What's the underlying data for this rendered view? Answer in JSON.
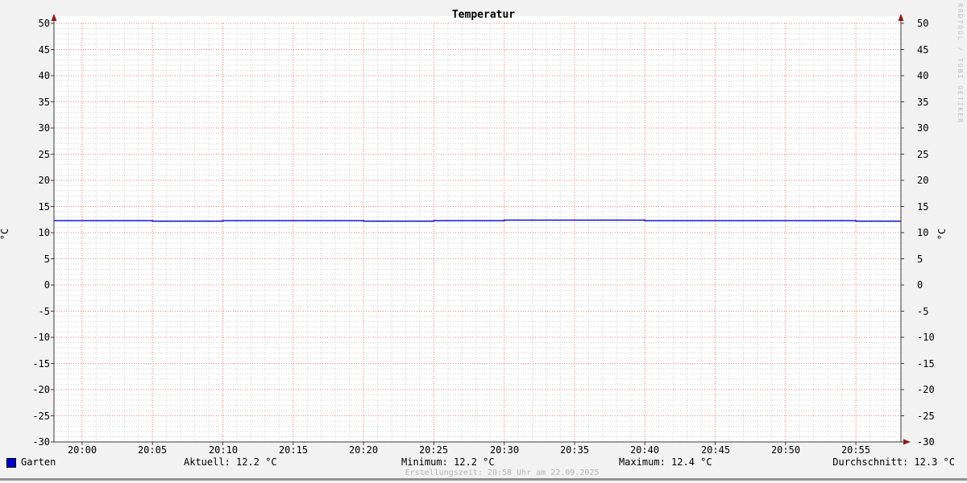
{
  "title": "Temperatur",
  "axis_unit_left": "°C",
  "axis_unit_right": "°C",
  "watermark": "RRDTOOL / TOBI OETIKER",
  "footer": {
    "creation_text": "Erstellungszeit: 20:58 Uhr am 22.09.2025"
  },
  "legend": {
    "series_label": "Garten",
    "series_color": "#0000cc",
    "aktuell": "Aktuell: 12.2 °C",
    "minimum": "Minimum: 12.2 °C",
    "maximum": "Maximum: 12.4 °C",
    "durchschnitt": "Durchschnitt: 12.3 °C"
  },
  "chart_data": {
    "type": "line",
    "title": "Temperatur",
    "ylabel": "°C",
    "ylim": [
      -30,
      50
    ],
    "y_major_step": 5,
    "y_minor_step": 1,
    "y_tick_labels": [
      "50",
      "45",
      "40",
      "35",
      "30",
      "25",
      "20",
      "15",
      "10",
      "5",
      "0",
      "-5",
      "-10",
      "-15",
      "-20",
      "-25",
      "-30"
    ],
    "x_range_minutes": 60.2,
    "x_minor_step_minutes": 1,
    "x_major_ticks": [
      {
        "min": 2,
        "label": "20:00"
      },
      {
        "min": 7,
        "label": "20:05"
      },
      {
        "min": 12,
        "label": "20:10"
      },
      {
        "min": 17,
        "label": "20:15"
      },
      {
        "min": 22,
        "label": "20:20"
      },
      {
        "min": 27,
        "label": "20:25"
      },
      {
        "min": 32,
        "label": "20:30"
      },
      {
        "min": 37,
        "label": "20:35"
      },
      {
        "min": 42,
        "label": "20:40"
      },
      {
        "min": 47,
        "label": "20:45"
      },
      {
        "min": 52,
        "label": "20:50"
      },
      {
        "min": 57,
        "label": "20:55"
      }
    ],
    "series": [
      {
        "name": "Garten",
        "color": "#0000cc",
        "points": [
          [
            0,
            12.3
          ],
          [
            2,
            12.3
          ],
          [
            7,
            12.2
          ],
          [
            12,
            12.3
          ],
          [
            17,
            12.3
          ],
          [
            22,
            12.2
          ],
          [
            27,
            12.3
          ],
          [
            32,
            12.4
          ],
          [
            37,
            12.4
          ],
          [
            42,
            12.3
          ],
          [
            47,
            12.3
          ],
          [
            52,
            12.3
          ],
          [
            57,
            12.2
          ],
          [
            60.2,
            12.2
          ]
        ]
      }
    ],
    "stats": {
      "aktuell": 12.2,
      "minimum": 12.2,
      "maximum": 12.4,
      "durchschnitt": 12.3
    },
    "grid": {
      "style": "dotted",
      "major_color": "#e97c7c",
      "minor_color": "#d2d2d2"
    },
    "axis_color": "#3c3c3c",
    "arrow_color": "#8c1c1c",
    "canvas_color": "#ffffff",
    "background_color": "#f2f2f2",
    "legend_position": "bottom"
  }
}
